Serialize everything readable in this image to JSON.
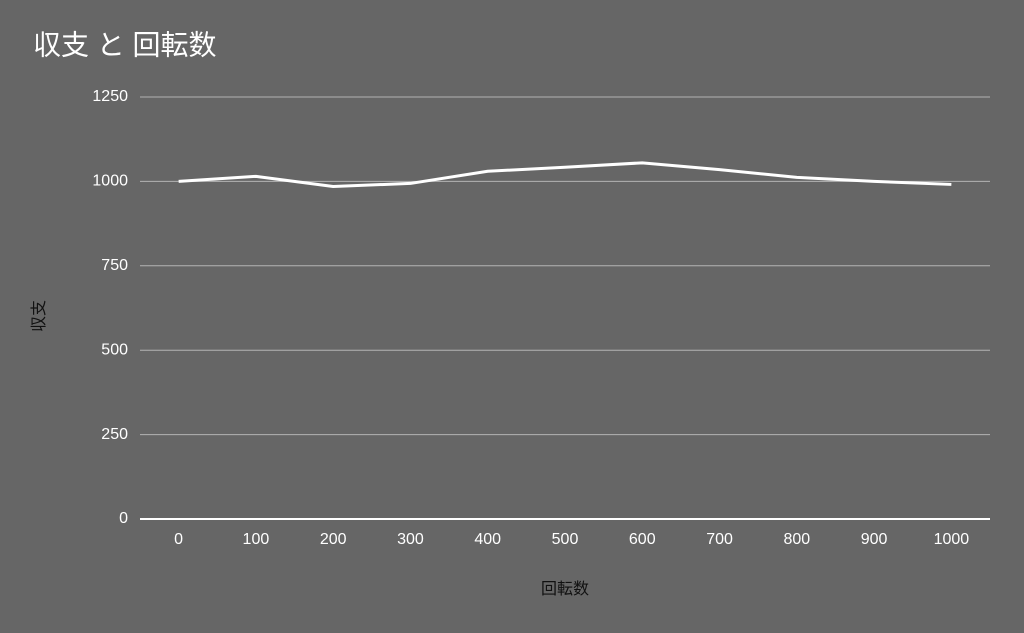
{
  "chart_data": {
    "type": "line",
    "title": "収支 と 回転数",
    "x_label": "回転数",
    "y_label": "収支",
    "categories": [
      "0",
      "100",
      "200",
      "300",
      "400",
      "500",
      "600",
      "700",
      "800",
      "900",
      "1000"
    ],
    "series": [
      {
        "name": "収支",
        "color": "#ffffff",
        "values": [
          1000,
          1015,
          985,
          994,
          1030,
          1042,
          1055,
          1035,
          1012,
          1000,
          991
        ]
      }
    ],
    "ylim": [
      0,
      1250
    ],
    "yticks": [
      0,
      250,
      500,
      750,
      1000,
      1250
    ],
    "grid": true
  }
}
